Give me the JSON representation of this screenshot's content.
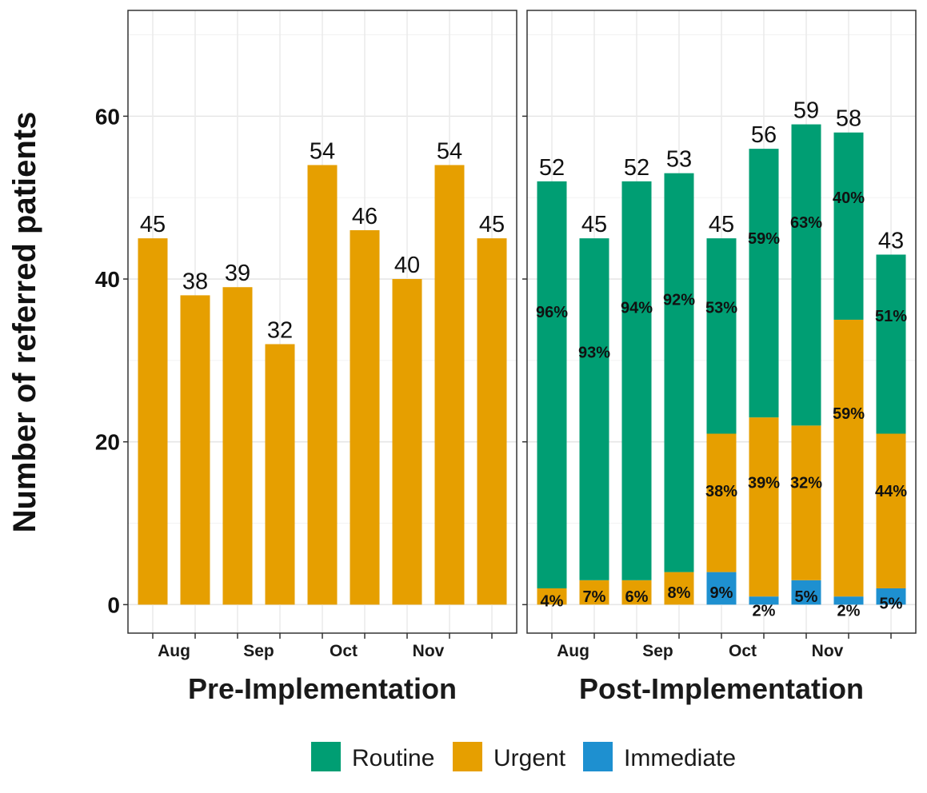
{
  "chart_data": {
    "type": "bar",
    "ylabel": "Number of referred patients",
    "ylim": [
      -3.5,
      73
    ],
    "yticks": [
      0,
      20,
      40,
      60
    ],
    "legend": {
      "position": "bottom",
      "entries": [
        "Routine",
        "Urgent",
        "Immediate"
      ]
    },
    "colors": {
      "Routine": "#009E73",
      "Urgent": "#E69F00",
      "Immediate": "#1E90D0"
    },
    "panels": [
      {
        "title": "Pre-Implementation",
        "tick_labels": [
          "Aug",
          "Sep",
          "Oct",
          "Nov"
        ],
        "totals": [
          45,
          38,
          39,
          32,
          54,
          46,
          40,
          54,
          45
        ],
        "series": [
          {
            "name": "Urgent",
            "values": [
              45,
              38,
              39,
              32,
              54,
              46,
              40,
              54,
              45
            ]
          }
        ],
        "percent_labels": []
      },
      {
        "title": "Post-Implementation",
        "tick_labels": [
          "Aug",
          "Sep",
          "Oct",
          "Nov"
        ],
        "totals": [
          52,
          45,
          52,
          53,
          45,
          56,
          59,
          58,
          43
        ],
        "series": [
          {
            "name": "Immediate",
            "values": [
              0,
              0,
              0,
              0,
              4,
              1,
              3,
              1,
              2
            ]
          },
          {
            "name": "Urgent",
            "values": [
              2,
              3,
              3,
              4,
              17,
              22,
              19,
              34,
              19
            ]
          },
          {
            "name": "Routine",
            "values": [
              50,
              42,
              49,
              49,
              24,
              33,
              37,
              23,
              22
            ]
          }
        ],
        "percent_labels": [
          {
            "bar": 0,
            "text": "96%",
            "y": 36
          },
          {
            "bar": 0,
            "text": "4%",
            "y": 0.5
          },
          {
            "bar": 1,
            "text": "93%",
            "y": 31
          },
          {
            "bar": 1,
            "text": "7%",
            "y": 1
          },
          {
            "bar": 2,
            "text": "94%",
            "y": 36.5
          },
          {
            "bar": 2,
            "text": "6%",
            "y": 1
          },
          {
            "bar": 3,
            "text": "92%",
            "y": 37.5
          },
          {
            "bar": 3,
            "text": "8%",
            "y": 1.5
          },
          {
            "bar": 4,
            "text": "53%",
            "y": 36.5
          },
          {
            "bar": 4,
            "text": "38%",
            "y": 14
          },
          {
            "bar": 4,
            "text": "9%",
            "y": 1.5
          },
          {
            "bar": 5,
            "text": "59%",
            "y": 45
          },
          {
            "bar": 5,
            "text": "39%",
            "y": 15
          },
          {
            "bar": 5,
            "text": "2%",
            "y": -0.7
          },
          {
            "bar": 6,
            "text": "63%",
            "y": 47
          },
          {
            "bar": 6,
            "text": "32%",
            "y": 15
          },
          {
            "bar": 6,
            "text": "5%",
            "y": 1
          },
          {
            "bar": 7,
            "text": "40%",
            "y": 50
          },
          {
            "bar": 7,
            "text": "59%",
            "y": 23.5
          },
          {
            "bar": 7,
            "text": "2%",
            "y": -0.7
          },
          {
            "bar": 8,
            "text": "51%",
            "y": 35.5
          },
          {
            "bar": 8,
            "text": "44%",
            "y": 14
          },
          {
            "bar": 8,
            "text": "5%",
            "y": 0.2
          }
        ]
      }
    ]
  }
}
